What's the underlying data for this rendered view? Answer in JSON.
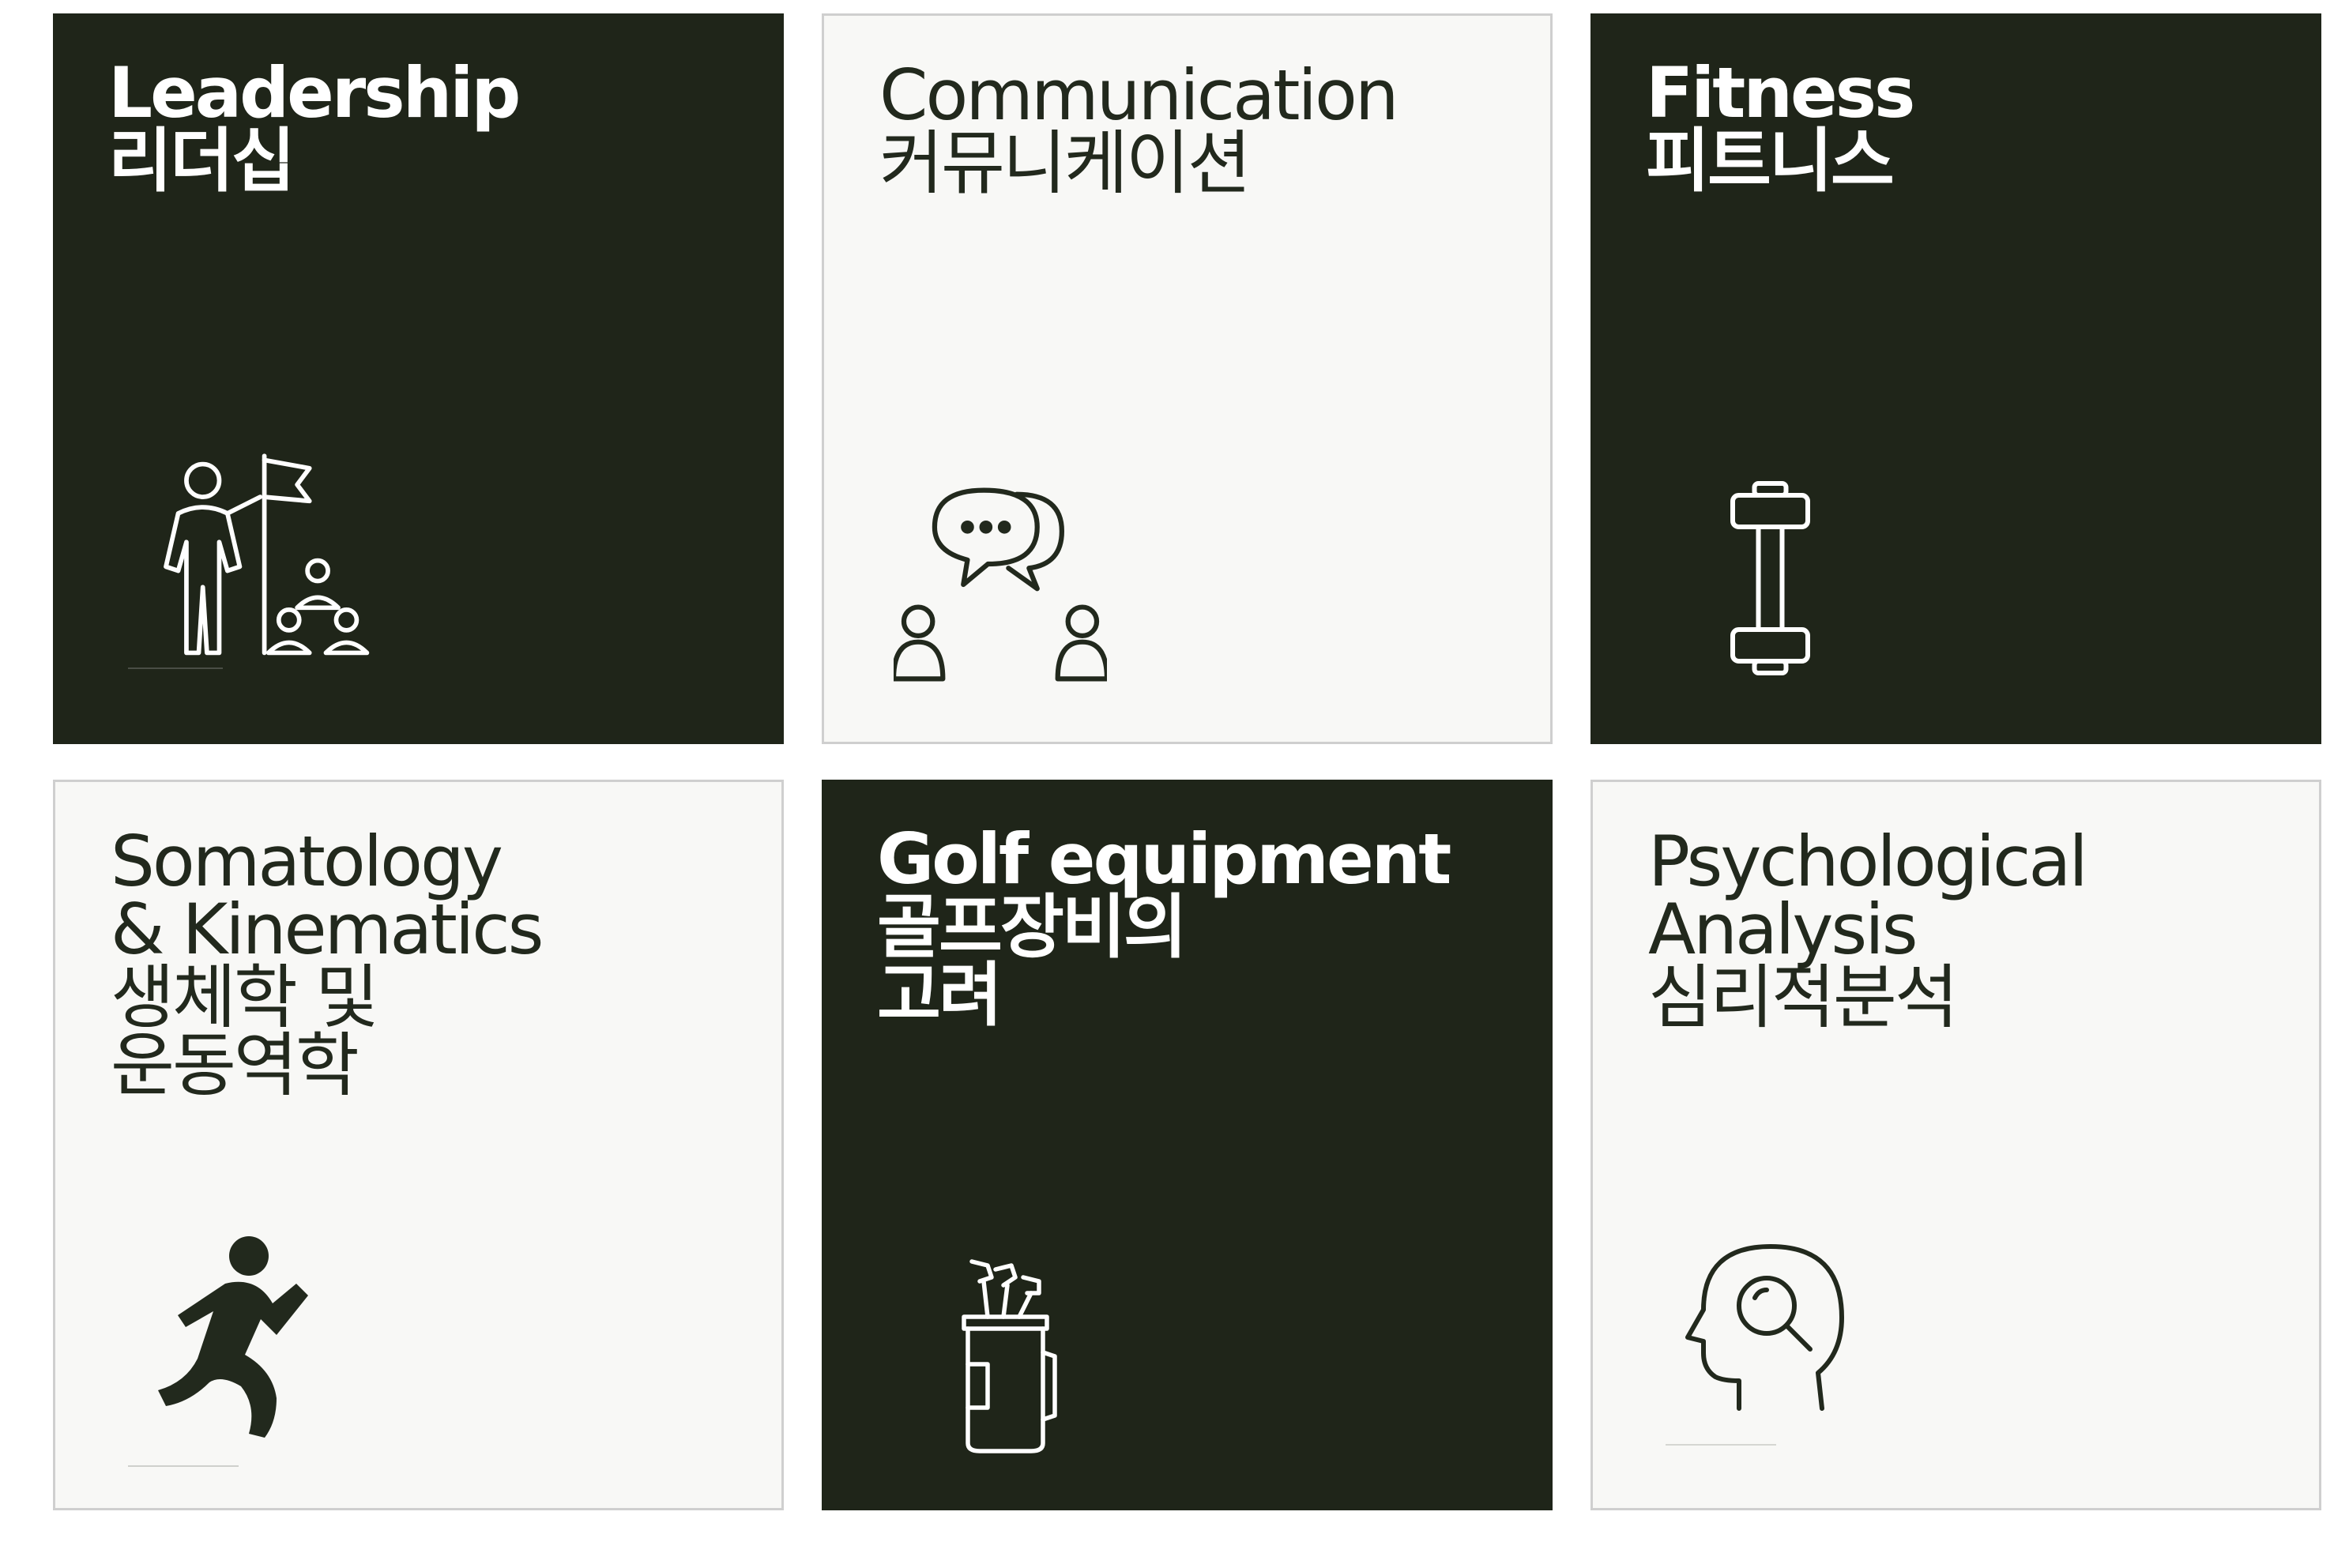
{
  "tiles": [
    {
      "title_en": "Leadership",
      "title_ko": "리더십",
      "icon": "leader-with-flag-icon"
    },
    {
      "title_en": "Communication",
      "title_ko": "커뮤니케이션",
      "icon": "conversation-icon"
    },
    {
      "title_en": "Fitness",
      "title_ko": "피트니스",
      "icon": "dumbbell-icon"
    },
    {
      "title_en_1": "Somatology",
      "title_en_2": "& Kinematics",
      "title_ko_1": "생체학 및",
      "title_ko_2": "운동역학",
      "icon": "running-person-icon"
    },
    {
      "title_en": "Golf equipment",
      "title_ko_1": "골프장비의",
      "title_ko_2": "고려",
      "icon": "golf-bag-icon"
    },
    {
      "title_en_1": "Psychological",
      "title_en_2": "Analysis",
      "title_ko": "심리적분석",
      "icon": "head-magnifier-icon"
    }
  ],
  "colors": {
    "dark_tile": "#1f2519",
    "light_tile": "#f8f8f6",
    "light_border": "#cfcfcf",
    "light_text": "#22291d",
    "dark_text": "#ffffff"
  }
}
